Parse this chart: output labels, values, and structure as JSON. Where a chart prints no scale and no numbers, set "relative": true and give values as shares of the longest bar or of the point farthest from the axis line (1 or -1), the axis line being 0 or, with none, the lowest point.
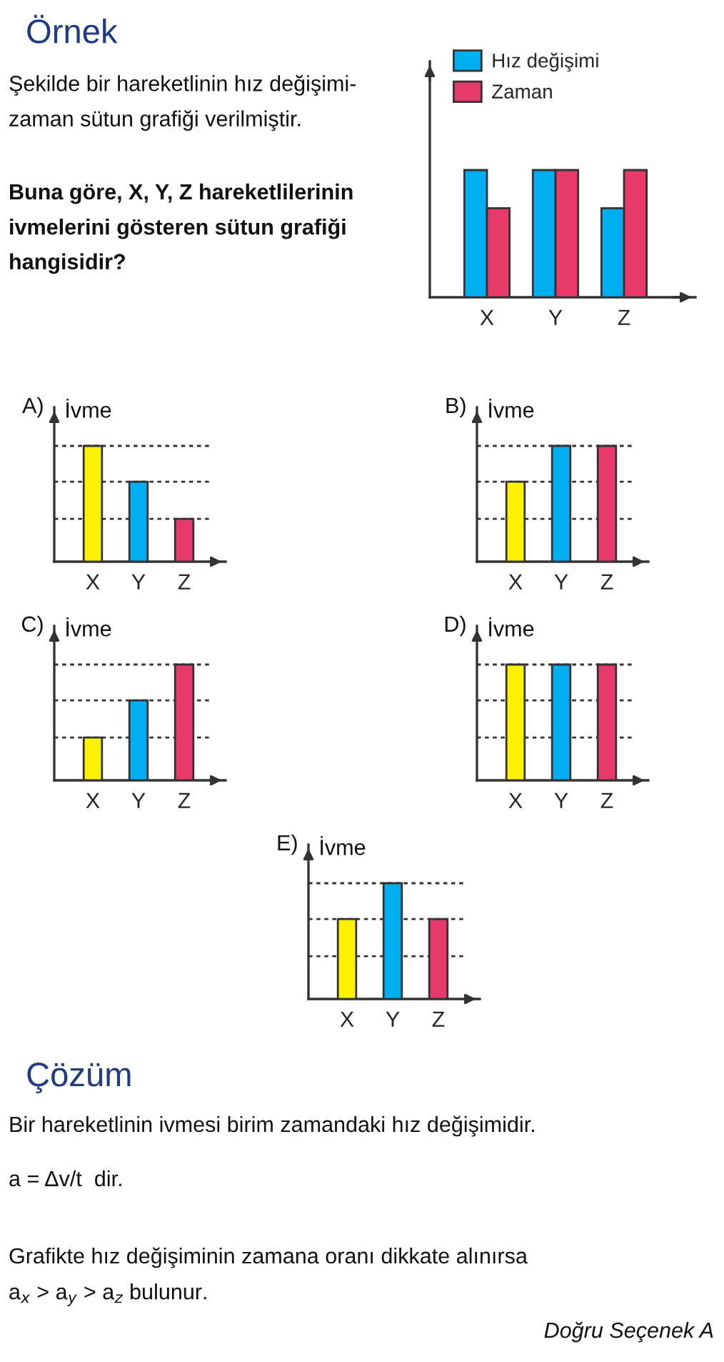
{
  "chart_data": [
    {
      "type": "bar",
      "relative": true,
      "categories": [
        "X",
        "Y",
        "Z"
      ],
      "legend": "top left",
      "series": [
        {
          "name": "Hız değişimi",
          "color": "#00aeef",
          "values": [
            1,
            1,
            0.7
          ]
        },
        {
          "name": "Zaman",
          "color": "#e8396b",
          "values": [
            0.7,
            1,
            1
          ]
        }
      ],
      "annotations": [
        "Örnek",
        "Şekilde bir hareketlinin hız değişimi-\nzaman sütun grafiği verilmiştir.",
        "Buna göre, X, Y, Z hareketlilerinin\nivmelerini gösteren sütun grafiği\nhangisidir?",
        "Çözüm",
        "Bir hareketlinin ivmesi birim zamandaki hız değişimidir.",
        "a = Δv/t  dir.",
        "Grafikte hız değişiminin zamana oranı dikkate alınırsa",
        "a$_{x}$ > a$_{y}$ > a$_{z}$ bulunur.",
        "Doğru Seçenek A"
      ]
    },
    {
      "type": "bar",
      "relative": true,
      "title": "A)",
      "ylabel": "İvme",
      "categories": [
        "X",
        "Y",
        "Z"
      ],
      "values": [
        1,
        0.69,
        0.37
      ],
      "colors": [
        "#fff200",
        "#00aeef",
        "#e8396b"
      ],
      "ref_lines": [
        {
          "axis": "y",
          "value": 0.37,
          "line_style": "dotted"
        },
        {
          "axis": "y",
          "value": 0.69,
          "line_style": "dotted"
        },
        {
          "axis": "y",
          "value": 1,
          "line_style": "dotted"
        }
      ]
    },
    {
      "type": "bar",
      "relative": true,
      "title": "B)",
      "ylabel": "İvme",
      "categories": [
        "X",
        "Y",
        "Z"
      ],
      "values": [
        0.69,
        1,
        1
      ],
      "colors": [
        "#fff200",
        "#00aeef",
        "#e8396b"
      ],
      "ref_lines": [
        {
          "axis": "y",
          "value": 0.37,
          "line_style": "dotted"
        },
        {
          "axis": "y",
          "value": 0.69,
          "line_style": "dotted"
        },
        {
          "axis": "y",
          "value": 1,
          "line_style": "dotted"
        }
      ]
    },
    {
      "type": "bar",
      "relative": true,
      "title": "C)",
      "ylabel": "İvme",
      "categories": [
        "X",
        "Y",
        "Z"
      ],
      "values": [
        0.37,
        0.69,
        1
      ],
      "colors": [
        "#fff200",
        "#00aeef",
        "#e8396b"
      ],
      "ref_lines": [
        {
          "axis": "y",
          "value": 0.37,
          "line_style": "dotted"
        },
        {
          "axis": "y",
          "value": 0.69,
          "line_style": "dotted"
        },
        {
          "axis": "y",
          "value": 1,
          "line_style": "dotted"
        }
      ]
    },
    {
      "type": "bar",
      "relative": true,
      "title": "D)",
      "ylabel": "İvme",
      "categories": [
        "X",
        "Y",
        "Z"
      ],
      "values": [
        1,
        1,
        1
      ],
      "colors": [
        "#fff200",
        "#00aeef",
        "#e8396b"
      ],
      "ref_lines": [
        {
          "axis": "y",
          "value": 0.37,
          "line_style": "dotted"
        },
        {
          "axis": "y",
          "value": 0.69,
          "line_style": "dotted"
        },
        {
          "axis": "y",
          "value": 1,
          "line_style": "dotted"
        }
      ]
    },
    {
      "type": "bar",
      "relative": true,
      "title": "E)",
      "ylabel": "İvme",
      "categories": [
        "X",
        "Y",
        "Z"
      ],
      "values": [
        0.69,
        1,
        0.69
      ],
      "colors": [
        "#fff200",
        "#00aeef",
        "#e8396b"
      ],
      "ref_lines": [
        {
          "axis": "y",
          "value": 0.37,
          "line_style": "dotted"
        },
        {
          "axis": "y",
          "value": 0.69,
          "line_style": "dotted"
        },
        {
          "axis": "y",
          "value": 1,
          "line_style": "dotted"
        }
      ]
    }
  ]
}
